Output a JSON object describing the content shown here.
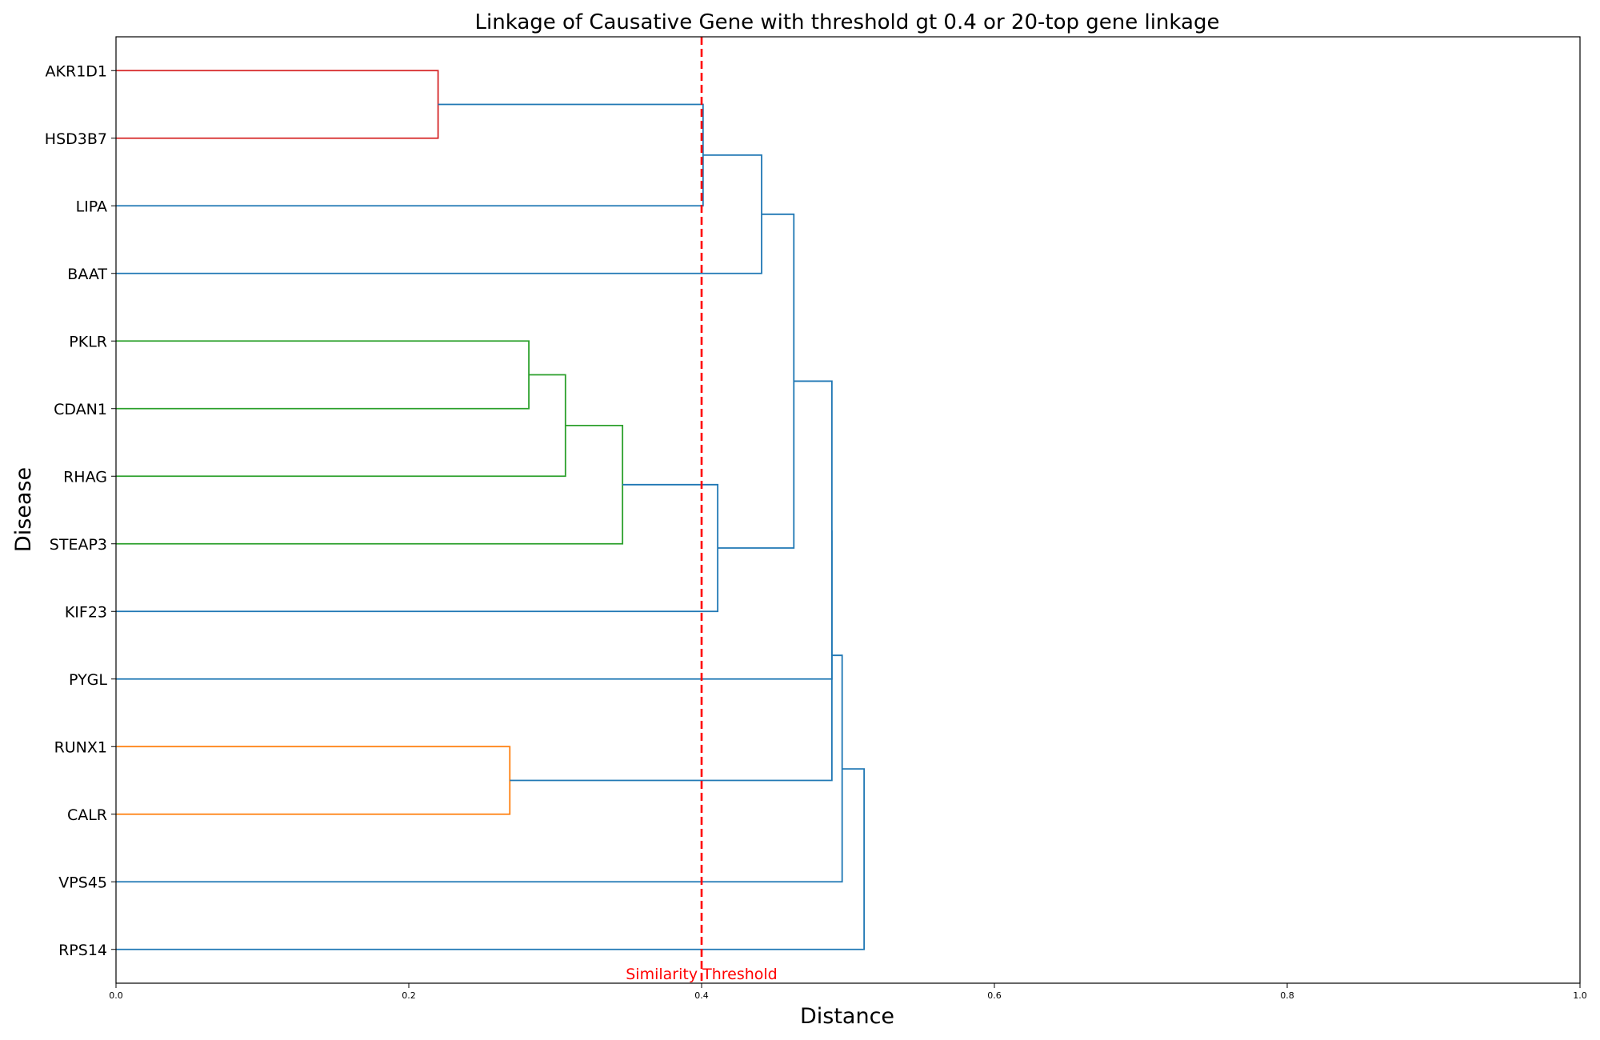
{
  "chart_data": {
    "type": "dendrogram",
    "orientation": "horizontal",
    "title": "Linkage of Causative Gene with threshold gt 0.4 or 20-top gene linkage",
    "xlabel": "Distance",
    "ylabel": "Disease",
    "xlim": [
      0.0,
      1.0
    ],
    "x_ticks": [
      {
        "value": 0.0,
        "label": "0.0"
      },
      {
        "value": 0.2,
        "label": "0.2"
      },
      {
        "value": 0.4,
        "label": "0.4"
      },
      {
        "value": 0.6,
        "label": "0.6"
      },
      {
        "value": 0.8,
        "label": "0.8"
      },
      {
        "value": 1.0,
        "label": "1.0"
      }
    ],
    "leaves": [
      "AKR1D1",
      "HSD3B7",
      "LIPA",
      "BAAT",
      "PKLR",
      "CDAN1",
      "RHAG",
      "STEAP3",
      "KIF23",
      "PYGL",
      "RUNX1",
      "CALR",
      "VPS45",
      "RPS14"
    ],
    "links": [
      {
        "y1": 0,
        "y2": 1,
        "x1": 0.0,
        "x2": 0.0,
        "h": 0.22,
        "color": "#d62728"
      },
      {
        "y1": 0.5,
        "y2": 2,
        "x1": 0.22,
        "x2": 0.0,
        "h": 0.401,
        "color": "#1f77b4"
      },
      {
        "y1": 1.25,
        "y2": 3,
        "x1": 0.401,
        "x2": 0.0,
        "h": 0.441,
        "color": "#1f77b4"
      },
      {
        "y1": 4,
        "y2": 5,
        "x1": 0.0,
        "x2": 0.0,
        "h": 0.282,
        "color": "#2ca02c"
      },
      {
        "y1": 4.5,
        "y2": 6,
        "x1": 0.282,
        "x2": 0.0,
        "h": 0.307,
        "color": "#2ca02c"
      },
      {
        "y1": 5.25,
        "y2": 7,
        "x1": 0.307,
        "x2": 0.0,
        "h": 0.346,
        "color": "#2ca02c"
      },
      {
        "y1": 6.125,
        "y2": 8,
        "x1": 0.346,
        "x2": 0.0,
        "h": 0.411,
        "color": "#1f77b4"
      },
      {
        "y1": 2.125,
        "y2": 7.0625,
        "x1": 0.441,
        "x2": 0.411,
        "h": 0.463,
        "color": "#1f77b4"
      },
      {
        "y1": 4.59375,
        "y2": 9,
        "x1": 0.463,
        "x2": 0.0,
        "h": 0.489,
        "color": "#1f77b4"
      },
      {
        "y1": 10,
        "y2": 11,
        "x1": 0.0,
        "x2": 0.0,
        "h": 0.269,
        "color": "#ff7f0e"
      },
      {
        "y1": 6.8,
        "y2": 10.5,
        "x1": 0.489,
        "x2": 0.269,
        "h": 0.489,
        "color": "#1f77b4"
      },
      {
        "y1": 8.65,
        "y2": 12,
        "x1": 0.489,
        "x2": 0.0,
        "h": 0.496,
        "color": "#1f77b4"
      },
      {
        "y1": 10.33,
        "y2": 13,
        "x1": 0.496,
        "x2": 0.0,
        "h": 0.511,
        "color": "#1f77b4"
      }
    ],
    "threshold": {
      "value": 0.4,
      "label": "Similarity Threshold",
      "color": "#ff0000"
    },
    "grid": false
  }
}
